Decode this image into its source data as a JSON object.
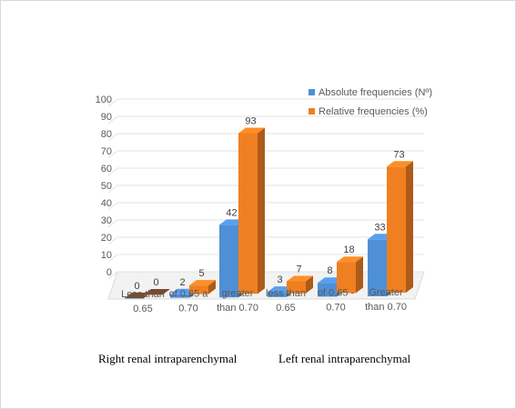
{
  "chart_data": {
    "type": "bar",
    "title": "",
    "xlabel": "",
    "ylabel": "",
    "ylim": [
      0,
      100
    ],
    "yticks": [
      0,
      10,
      20,
      30,
      40,
      50,
      60,
      70,
      80,
      90,
      100
    ],
    "grid": true,
    "legend_position": "top-right",
    "categories": [
      [
        "Less than",
        "0.65"
      ],
      [
        "of 0.65 a",
        "0.70"
      ],
      [
        "greater",
        "than 0.70"
      ],
      [
        "less than",
        "0.65"
      ],
      [
        "of 0.65 -",
        "0.70"
      ],
      [
        "Greater",
        "than 0.70"
      ]
    ],
    "groups": [
      "Right renal intraparenchymal",
      "Left renal intraparenchymal"
    ],
    "series": [
      {
        "name": "Absolute frequencies (Nº)",
        "color": "#4f8fd6",
        "values": [
          0,
          2,
          42,
          3,
          8,
          33
        ]
      },
      {
        "name": "Relative frequencies (%)",
        "color": "#f07f22",
        "values": [
          0,
          5,
          93,
          7,
          18,
          73
        ]
      }
    ]
  }
}
